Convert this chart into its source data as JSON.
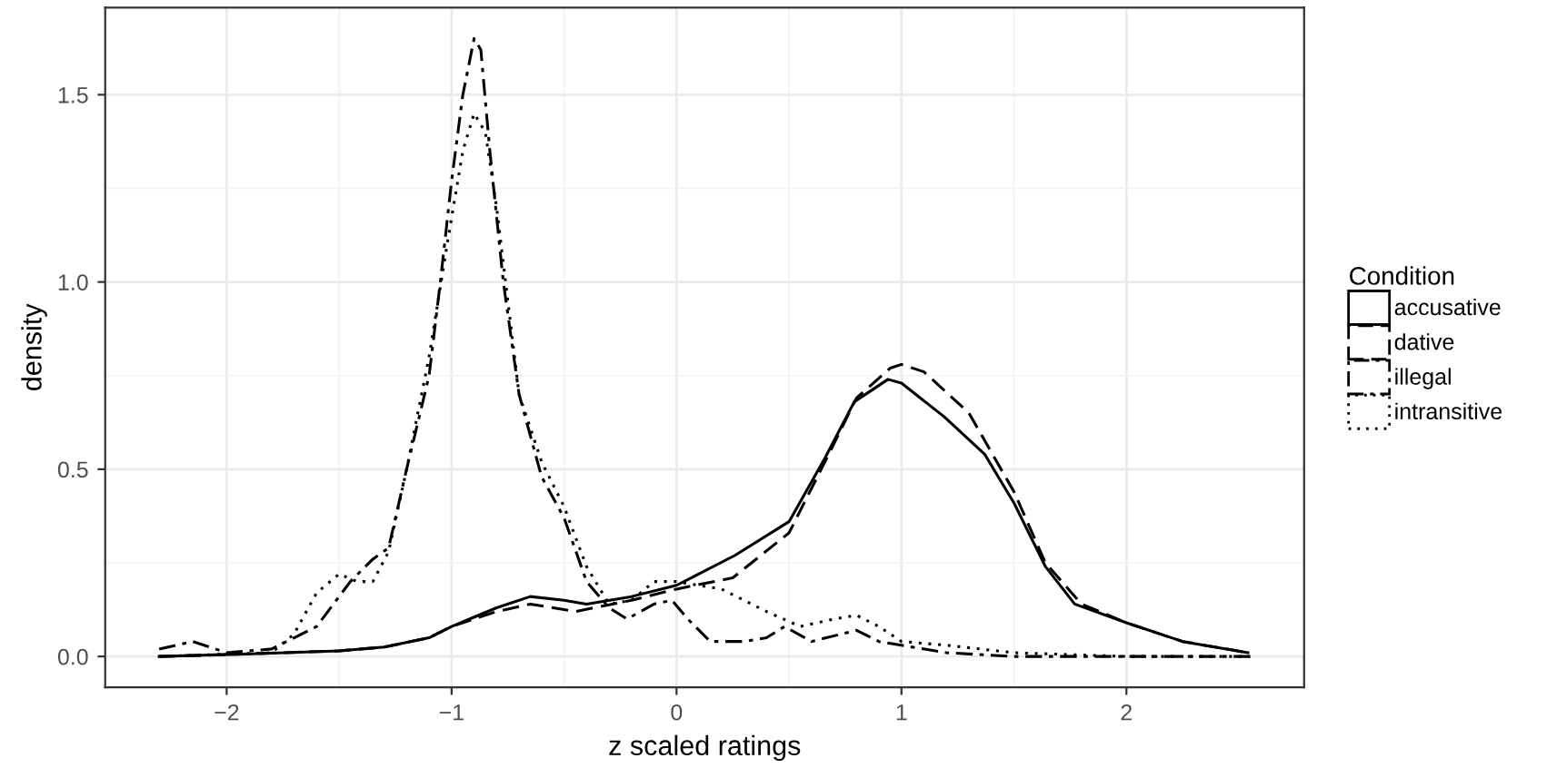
{
  "chart_data": {
    "type": "line",
    "xlabel": "z scaled ratings",
    "ylabel": "density",
    "legend_title": "Condition",
    "legend": "right",
    "grid": true,
    "xlim": [
      -2.54,
      2.79
    ],
    "ylim": [
      -0.0825,
      1.7325
    ],
    "xticks": [
      {
        "value": -2,
        "label": "−2"
      },
      {
        "value": -1,
        "label": "−1"
      },
      0,
      1,
      2
    ],
    "yticks": [
      {
        "value": 0,
        "label": "0.0"
      },
      {
        "value": 0.5,
        "label": "0.5"
      },
      {
        "value": 1,
        "label": "1.0"
      },
      {
        "value": 1.5,
        "label": "1.5"
      }
    ],
    "series": [
      {
        "name": "accusative",
        "color": "#000000",
        "line_style": "solid",
        "x": [
          -2.3,
          -2.0,
          -1.5,
          -1.3,
          -1.1,
          -1.0,
          -0.8,
          -0.65,
          -0.5,
          -0.4,
          -0.2,
          0,
          0.26,
          0.5,
          0.66,
          0.79,
          0.94,
          1.0,
          1.19,
          1.37,
          1.5,
          1.64,
          1.77,
          2.0,
          2.25,
          2.54
        ],
        "values": [
          0.0,
          0.005,
          0.015,
          0.025,
          0.05,
          0.08,
          0.13,
          0.16,
          0.15,
          0.14,
          0.16,
          0.19,
          0.27,
          0.36,
          0.53,
          0.68,
          0.74,
          0.73,
          0.64,
          0.54,
          0.41,
          0.24,
          0.14,
          0.09,
          0.04,
          0.01
        ]
      },
      {
        "name": "dative",
        "color": "#000000",
        "line_style": "dashed",
        "x": [
          -2.3,
          -2.0,
          -1.5,
          -1.3,
          -1.1,
          -1.0,
          -0.8,
          -0.65,
          -0.45,
          -0.2,
          0,
          0.25,
          0.5,
          0.66,
          0.8,
          0.95,
          1.0,
          1.1,
          1.3,
          1.5,
          1.64,
          1.8,
          2.0,
          2.25,
          2.54
        ],
        "values": [
          0.0,
          0.005,
          0.015,
          0.025,
          0.05,
          0.08,
          0.12,
          0.14,
          0.12,
          0.15,
          0.18,
          0.21,
          0.33,
          0.52,
          0.69,
          0.77,
          0.78,
          0.76,
          0.65,
          0.44,
          0.25,
          0.14,
          0.09,
          0.04,
          0.01
        ]
      },
      {
        "name": "illegal",
        "color": "#000000",
        "line_style": "dashdot",
        "x": [
          -2.3,
          -2.15,
          -2.0,
          -1.8,
          -1.6,
          -1.45,
          -1.35,
          -1.28,
          -1.2,
          -1.1,
          -1.05,
          -1.0,
          -0.95,
          -0.9,
          -0.87,
          -0.83,
          -0.77,
          -0.7,
          -0.6,
          -0.5,
          -0.4,
          -0.3,
          -0.22,
          -0.1,
          -0.02,
          0.05,
          0.15,
          0.3,
          0.4,
          0.48,
          0.6,
          0.8,
          0.9,
          1.0,
          1.2,
          1.5,
          2.0,
          2.55
        ],
        "values": [
          0.02,
          0.04,
          0.01,
          0.02,
          0.08,
          0.2,
          0.26,
          0.29,
          0.5,
          0.75,
          1.0,
          1.27,
          1.5,
          1.65,
          1.62,
          1.35,
          1.0,
          0.7,
          0.48,
          0.37,
          0.2,
          0.13,
          0.1,
          0.14,
          0.15,
          0.1,
          0.04,
          0.04,
          0.05,
          0.08,
          0.04,
          0.07,
          0.04,
          0.03,
          0.01,
          0.0,
          0.0,
          0.0
        ]
      },
      {
        "name": "intransitive",
        "color": "#000000",
        "line_style": "dotted",
        "x": [
          -2.3,
          -1.8,
          -1.7,
          -1.6,
          -1.5,
          -1.42,
          -1.35,
          -1.28,
          -1.2,
          -1.1,
          -1.02,
          -0.95,
          -0.9,
          -0.85,
          -0.8,
          -0.75,
          -0.7,
          -0.6,
          -0.5,
          -0.4,
          -0.3,
          -0.2,
          -0.1,
          0,
          0.2,
          0.4,
          0.55,
          0.7,
          0.8,
          0.9,
          1.0,
          1.2,
          1.5,
          2.0,
          2.55
        ],
        "values": [
          0.0,
          0.01,
          0.06,
          0.17,
          0.22,
          0.2,
          0.2,
          0.28,
          0.5,
          0.8,
          1.1,
          1.35,
          1.45,
          1.4,
          1.2,
          0.95,
          0.7,
          0.52,
          0.4,
          0.24,
          0.14,
          0.15,
          0.2,
          0.2,
          0.18,
          0.12,
          0.08,
          0.1,
          0.11,
          0.08,
          0.04,
          0.03,
          0.01,
          0.0,
          0.0
        ]
      }
    ]
  }
}
